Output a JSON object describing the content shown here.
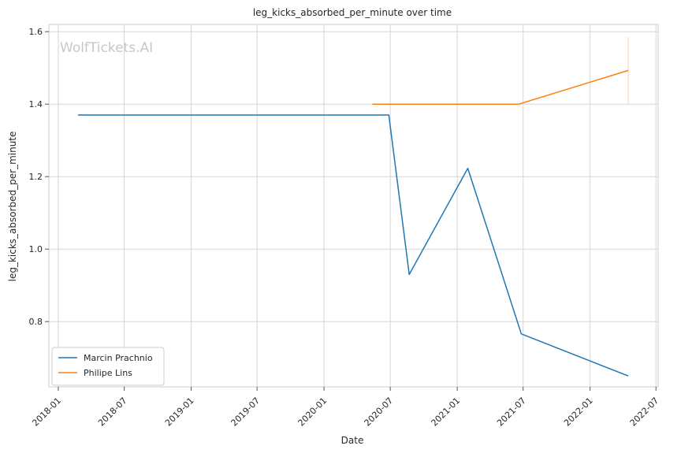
{
  "chart_data": {
    "type": "line",
    "title": "leg_kicks_absorbed_per_minute over time",
    "xlabel": "Date",
    "ylabel": "leg_kicks_absorbed_per_minute",
    "watermark": "WolfTickets.AI",
    "x_ticks": [
      "2018-01",
      "2018-07",
      "2019-01",
      "2019-07",
      "2020-01",
      "2020-07",
      "2021-01",
      "2021-07",
      "2022-01",
      "2022-07"
    ],
    "y_ticks": [
      "0.8",
      "1.0",
      "1.2",
      "1.4",
      "1.6"
    ],
    "xlim": [
      "2017-12-06",
      "2022-07-07"
    ],
    "ylim": [
      0.62,
      1.62
    ],
    "grid": true,
    "legend_position": "lower-left",
    "series": [
      {
        "name": "Marcin Prachnio",
        "color": "#1f77b4",
        "points": [
          {
            "x": "2018-02-24",
            "y": 1.37
          },
          {
            "x": "2020-06-27",
            "y": 1.37
          },
          {
            "x": "2020-08-22",
            "y": 0.93
          },
          {
            "x": "2021-01-30",
            "y": 1.223
          },
          {
            "x": "2021-06-26",
            "y": 0.766
          },
          {
            "x": "2022-04-16",
            "y": 0.65
          }
        ]
      },
      {
        "name": "Philipe Lins",
        "color": "#ff7f0e",
        "points": [
          {
            "x": "2020-05-13",
            "y": 1.4
          },
          {
            "x": "2021-06-19",
            "y": 1.4
          },
          {
            "x": "2022-04-16",
            "y": 1.493
          }
        ]
      }
    ],
    "error_bar": {
      "x": "2022-04-16",
      "y_low": 1.4,
      "y_high": 1.585,
      "color": "#ff7f0e"
    }
  }
}
